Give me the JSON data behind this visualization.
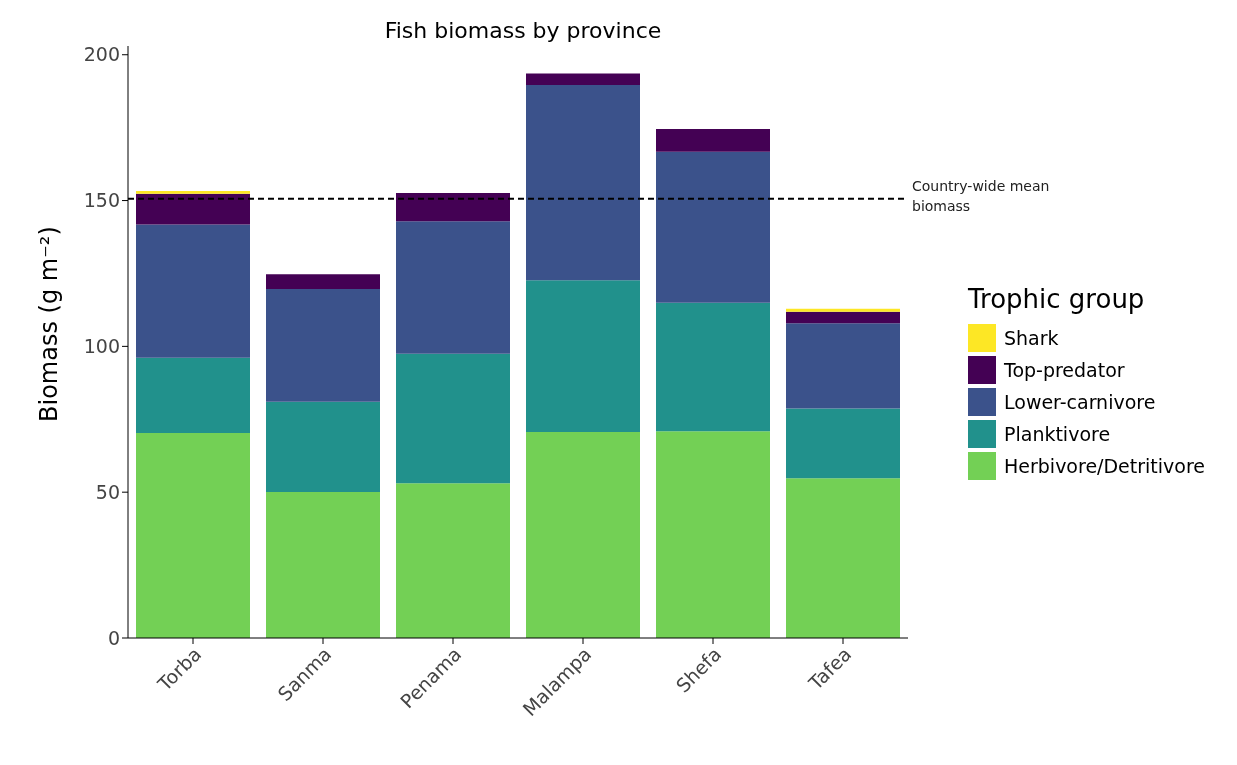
{
  "chart_data": {
    "type": "bar",
    "title": "Fish biomass by province",
    "ylabel": "Biomass (g m⁻²)",
    "legend_title": "Trophic group",
    "stacked": true,
    "categories": [
      "Torba",
      "Sanma",
      "Penama",
      "Malampa",
      "Shefa",
      "Tafea"
    ],
    "series": [
      {
        "name": "Herbivore/Detritivore",
        "color": "#73d055",
        "values": [
          70.3,
          50.1,
          53.1,
          70.6,
          70.9,
          54.8
        ]
      },
      {
        "name": "Planktivore",
        "color": "#21918c",
        "values": [
          25.8,
          30.9,
          44.4,
          52.1,
          44.1,
          23.9
        ]
      },
      {
        "name": "Lower-carnivore",
        "color": "#3b528b",
        "values": [
          45.7,
          38.7,
          45.4,
          66.9,
          51.7,
          29.2
        ]
      },
      {
        "name": "Top-predator",
        "color": "#440154",
        "values": [
          10.5,
          5.0,
          9.7,
          4.0,
          7.8,
          4.0
        ]
      },
      {
        "name": "Shark",
        "color": "#fde725",
        "values": [
          1.0,
          0,
          0,
          0,
          0,
          1.0
        ]
      }
    ],
    "ylim": [
      0,
      203
    ],
    "yticks": [
      0,
      50,
      100,
      150,
      200
    ],
    "grid": false,
    "legend": "right",
    "ref_lines": [
      {
        "axis": "y",
        "value": 150.6,
        "label": "Country-wide mean biomass",
        "color": "#000000",
        "line_style": "dashed"
      }
    ]
  }
}
